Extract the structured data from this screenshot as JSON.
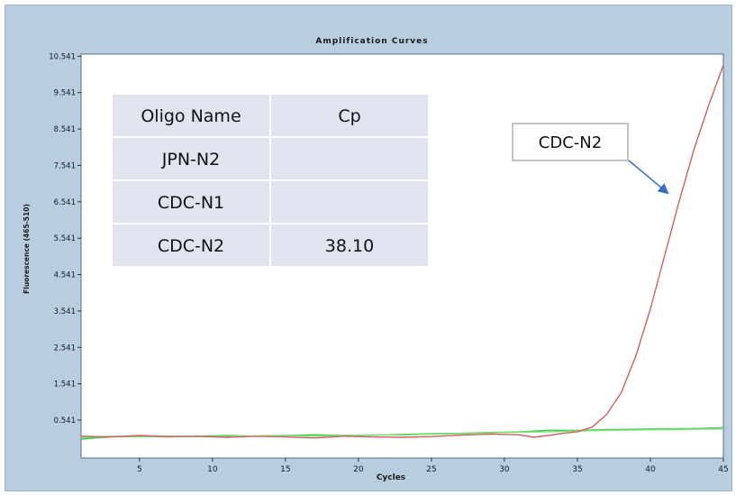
{
  "chart_data": {
    "type": "line",
    "title": "Amplification Curves",
    "xlabel": "Cycles",
    "ylabel": "Fluorescence (465-510)",
    "xlim": [
      1,
      45
    ],
    "ylim": [
      -0.5,
      10.6
    ],
    "x_ticks": [
      5,
      10,
      15,
      20,
      25,
      30,
      35,
      40,
      45
    ],
    "y_ticks": [
      0.541,
      1.541,
      2.541,
      3.541,
      4.541,
      5.541,
      6.541,
      7.541,
      8.541,
      9.541,
      10.541
    ],
    "y_tick_labels": [
      "0.541",
      "1.541",
      "2.541",
      "3.541",
      "4.541",
      "5.541",
      "6.541",
      "7.541",
      "8.541",
      "9.541",
      "10.541"
    ],
    "grid": false,
    "series": [
      {
        "color": "#d06060",
        "points": [
          [
            1,
            0.1
          ],
          [
            3,
            0.08
          ],
          [
            5,
            0.12
          ],
          [
            7,
            0.09
          ],
          [
            9,
            0.1
          ],
          [
            11,
            0.07
          ],
          [
            13,
            0.1
          ],
          [
            15,
            0.08
          ],
          [
            17,
            0.05
          ],
          [
            19,
            0.1
          ],
          [
            21,
            0.08
          ],
          [
            23,
            0.07
          ],
          [
            25,
            0.09
          ],
          [
            27,
            0.13
          ],
          [
            29,
            0.16
          ],
          [
            31,
            0.14
          ],
          [
            32,
            0.07
          ],
          [
            33,
            0.12
          ],
          [
            34,
            0.18
          ],
          [
            35,
            0.22
          ],
          [
            36,
            0.35
          ],
          [
            37,
            0.7
          ],
          [
            38,
            1.3
          ],
          [
            39,
            2.3
          ],
          [
            40,
            3.6
          ],
          [
            41,
            5.1
          ],
          [
            42,
            6.6
          ],
          [
            43,
            8.0
          ],
          [
            44,
            9.2
          ],
          [
            45,
            10.3
          ]
        ]
      },
      {
        "color": "#44cc44",
        "points": [
          [
            1,
            0.02
          ],
          [
            3,
            0.08
          ],
          [
            5,
            0.1
          ],
          [
            7,
            0.08
          ],
          [
            9,
            0.1
          ],
          [
            11,
            0.12
          ],
          [
            13,
            0.1
          ],
          [
            15,
            0.12
          ],
          [
            17,
            0.14
          ],
          [
            19,
            0.12
          ],
          [
            21,
            0.13
          ],
          [
            23,
            0.15
          ],
          [
            25,
            0.17
          ],
          [
            27,
            0.18
          ],
          [
            29,
            0.2
          ],
          [
            31,
            0.22
          ],
          [
            33,
            0.26
          ],
          [
            35,
            0.26
          ],
          [
            37,
            0.28
          ],
          [
            39,
            0.29
          ],
          [
            41,
            0.3
          ],
          [
            43,
            0.31
          ],
          [
            45,
            0.33
          ]
        ]
      },
      {
        "color": "#7ee07e",
        "points": [
          [
            1,
            0.06
          ],
          [
            3,
            0.1
          ],
          [
            5,
            0.08
          ],
          [
            7,
            0.1
          ],
          [
            9,
            0.09
          ],
          [
            11,
            0.1
          ],
          [
            13,
            0.11
          ],
          [
            15,
            0.12
          ],
          [
            17,
            0.1
          ],
          [
            19,
            0.12
          ],
          [
            21,
            0.14
          ],
          [
            23,
            0.13
          ],
          [
            25,
            0.16
          ],
          [
            27,
            0.17
          ],
          [
            29,
            0.19
          ],
          [
            31,
            0.21
          ],
          [
            33,
            0.22
          ],
          [
            35,
            0.24
          ],
          [
            37,
            0.26
          ],
          [
            39,
            0.27
          ],
          [
            41,
            0.28
          ],
          [
            43,
            0.29
          ],
          [
            45,
            0.3
          ]
        ]
      }
    ],
    "table": {
      "headers": [
        "Oligo Name",
        "Cp"
      ],
      "rows": [
        [
          "JPN-N2",
          ""
        ],
        [
          "CDC-N1",
          ""
        ],
        [
          "CDC-N2",
          "38.10"
        ]
      ]
    },
    "callout": {
      "label": "CDC-N2",
      "target": [
        42,
        6.6
      ]
    }
  },
  "colors": {
    "frame": "#b9cde0",
    "plot_bg": "#ffffff",
    "table_bg": "#dfe4ef"
  }
}
